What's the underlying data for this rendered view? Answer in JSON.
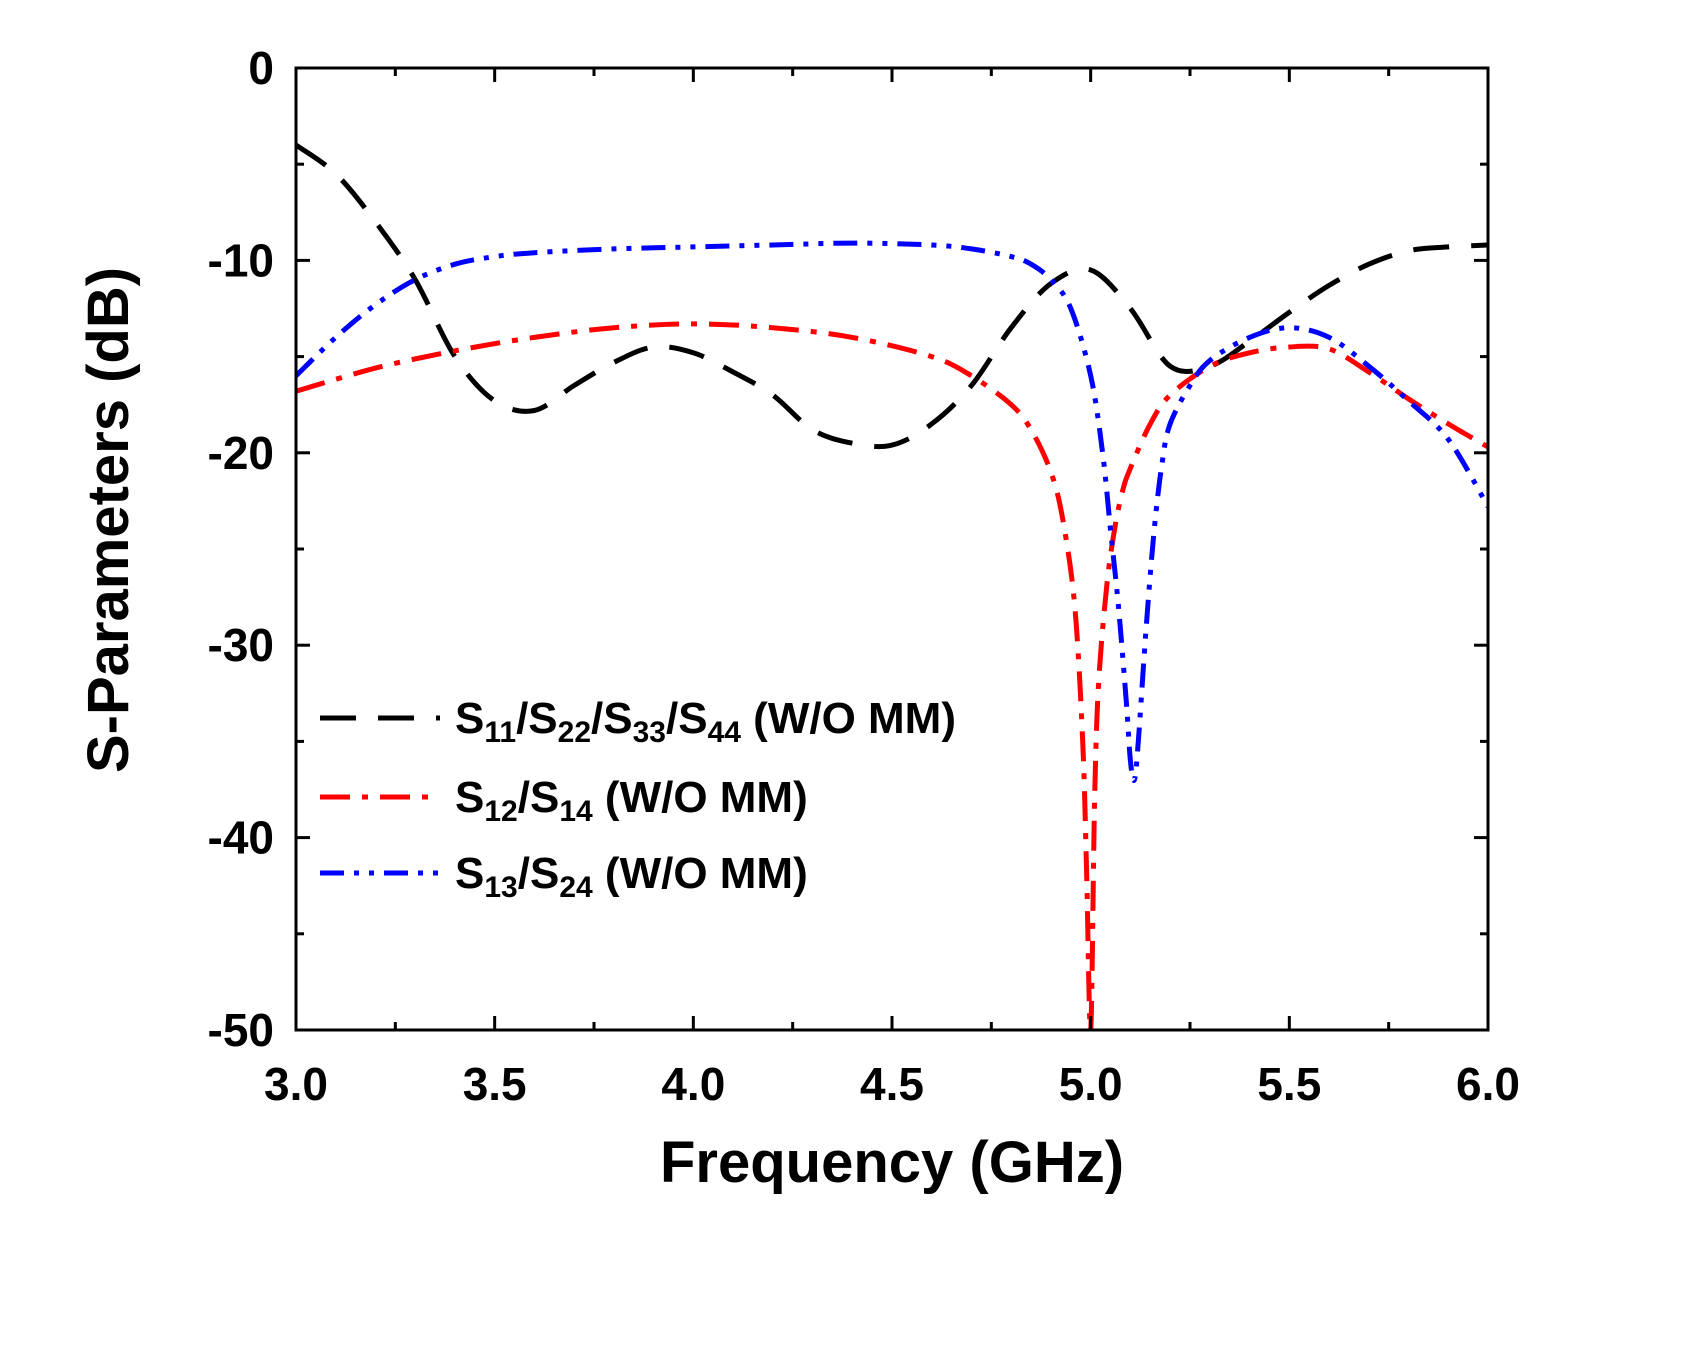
{
  "chart_data": {
    "type": "line",
    "title": "",
    "xlabel": "Frequency (GHz)",
    "ylabel": "S-Parameters (dB)",
    "xlim": [
      3.0,
      6.0
    ],
    "ylim": [
      -50,
      0
    ],
    "xticks": [
      "3.0",
      "3.5",
      "4.0",
      "4.5",
      "5.0",
      "5.5",
      "6.0"
    ],
    "yticks": [
      "0",
      "-10",
      "-20",
      "-30",
      "-40",
      "-50"
    ],
    "grid": false,
    "legend_position": "center-left",
    "series": [
      {
        "name": "S11/S22/S33/S44 (W/O MM)",
        "legend": [
          {
            "t": "S",
            "sub": false
          },
          {
            "t": "11",
            "sub": true
          },
          {
            "t": "/S",
            "sub": false
          },
          {
            "t": "22",
            "sub": true
          },
          {
            "t": "/S",
            "sub": false
          },
          {
            "t": "33",
            "sub": true
          },
          {
            "t": "/S",
            "sub": false
          },
          {
            "t": "44",
            "sub": true
          },
          {
            "t": " (W/O MM)",
            "sub": false
          }
        ],
        "color": "#000000",
        "dash": "dash",
        "x": [
          3.0,
          3.1,
          3.2,
          3.3,
          3.4,
          3.5,
          3.6,
          3.7,
          3.8,
          3.9,
          4.0,
          4.1,
          4.2,
          4.3,
          4.4,
          4.5,
          4.6,
          4.7,
          4.8,
          4.9,
          5.0,
          5.1,
          5.2,
          5.3,
          5.4,
          5.5,
          5.6,
          5.7,
          5.8,
          5.9,
          6.0
        ],
        "y": [
          -4.0,
          -5.5,
          -8.0,
          -11.0,
          -15.0,
          -17.3,
          -17.8,
          -16.5,
          -15.3,
          -14.5,
          -14.8,
          -15.8,
          -17.0,
          -18.8,
          -19.5,
          -19.6,
          -18.5,
          -16.5,
          -13.5,
          -11.2,
          -10.5,
          -12.5,
          -15.5,
          -15.5,
          -14.2,
          -12.7,
          -11.3,
          -10.2,
          -9.5,
          -9.3,
          -9.2
        ]
      },
      {
        "name": "S12/S14 (W/O MM)",
        "legend": [
          {
            "t": "S",
            "sub": false
          },
          {
            "t": "12",
            "sub": true
          },
          {
            "t": "/S",
            "sub": false
          },
          {
            "t": "14",
            "sub": true
          },
          {
            "t": " (W/O MM)",
            "sub": false
          }
        ],
        "color": "#ff0000",
        "dash": "dashdot",
        "x": [
          3.0,
          3.2,
          3.4,
          3.6,
          3.8,
          4.0,
          4.2,
          4.4,
          4.6,
          4.7,
          4.8,
          4.85,
          4.9,
          4.93,
          4.96,
          4.98,
          4.99,
          5.0,
          5.01,
          5.02,
          5.04,
          5.06,
          5.08,
          5.1,
          5.15,
          5.2,
          5.3,
          5.4,
          5.5,
          5.6,
          5.7,
          5.8,
          5.9,
          6.0
        ],
        "y": [
          -16.8,
          -15.6,
          -14.7,
          -14.0,
          -13.5,
          -13.3,
          -13.5,
          -14.0,
          -15.0,
          -16.0,
          -17.5,
          -18.8,
          -21.0,
          -23.5,
          -28.0,
          -35.0,
          -42.0,
          -50.0,
          -38.0,
          -32.0,
          -27.0,
          -24.0,
          -22.0,
          -20.8,
          -18.5,
          -17.0,
          -15.5,
          -14.8,
          -14.5,
          -14.6,
          -15.8,
          -17.2,
          -18.5,
          -19.7
        ]
      },
      {
        "name": "S13/S24 (W/O MM)",
        "legend": [
          {
            "t": "S",
            "sub": false
          },
          {
            "t": "13",
            "sub": true
          },
          {
            "t": "/S",
            "sub": false
          },
          {
            "t": "24",
            "sub": true
          },
          {
            "t": " (W/O MM)",
            "sub": false
          }
        ],
        "color": "#0000ff",
        "dash": "dashdotdot",
        "x": [
          3.0,
          3.1,
          3.2,
          3.3,
          3.4,
          3.5,
          3.6,
          3.8,
          4.0,
          4.2,
          4.4,
          4.6,
          4.7,
          4.8,
          4.85,
          4.9,
          4.95,
          5.0,
          5.03,
          5.05,
          5.07,
          5.09,
          5.1,
          5.11,
          5.12,
          5.14,
          5.16,
          5.18,
          5.2,
          5.25,
          5.3,
          5.4,
          5.5,
          5.6,
          5.7,
          5.8,
          5.9,
          6.0
        ],
        "y": [
          -16.0,
          -14.0,
          -12.3,
          -11.0,
          -10.2,
          -9.8,
          -9.6,
          -9.4,
          -9.3,
          -9.2,
          -9.1,
          -9.2,
          -9.4,
          -9.8,
          -10.2,
          -11.0,
          -12.5,
          -16.0,
          -20.0,
          -24.0,
          -28.0,
          -33.0,
          -36.0,
          -37.0,
          -35.0,
          -29.0,
          -24.0,
          -20.5,
          -18.5,
          -16.5,
          -15.2,
          -14.0,
          -13.5,
          -14.0,
          -15.5,
          -17.3,
          -19.3,
          -22.8
        ]
      }
    ]
  }
}
